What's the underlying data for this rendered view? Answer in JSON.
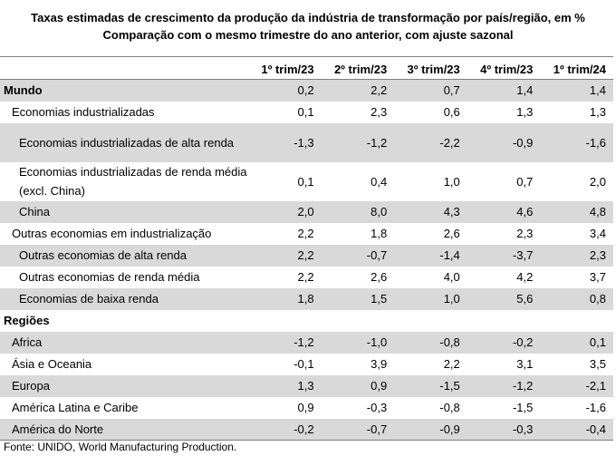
{
  "title": "Taxas estimadas de crescimento da produção da indústria de transformação por país/região, em %",
  "subtitle": "Comparação com o mesmo trimestre do ano anterior, com ajuste sazonal",
  "columns": [
    "1º trim/23",
    "2º trim/23",
    "3º trim/23",
    "4º trim/23",
    "1º trim/24"
  ],
  "rows": [
    {
      "label": "Mundo",
      "values": [
        "0,2",
        "2,2",
        "0,7",
        "1,4",
        "1,4"
      ]
    },
    {
      "label": "Economias industrializadas",
      "values": [
        "0,1",
        "2,3",
        "0,6",
        "1,3",
        "1,3"
      ]
    },
    {
      "label": "Economias industrializadas de alta renda",
      "values": [
        "-1,3",
        "-1,2",
        "-2,2",
        "-0,9",
        "-1,6"
      ]
    },
    {
      "label": "Economias industrializadas de renda média (excl. China)",
      "values": [
        "0,1",
        "0,4",
        "1,0",
        "0,7",
        "2,0"
      ]
    },
    {
      "label": "China",
      "values": [
        "2,0",
        "8,0",
        "4,3",
        "4,6",
        "4,8"
      ]
    },
    {
      "label": "Outras economias em industrialização",
      "values": [
        "2,2",
        "1,8",
        "2,6",
        "2,3",
        "3,4"
      ]
    },
    {
      "label": "Outras economias de alta renda",
      "values": [
        "2,2",
        "-0,7",
        "-1,4",
        "-3,7",
        "2,3"
      ]
    },
    {
      "label": "Outras economias de renda média",
      "values": [
        "2,2",
        "2,6",
        "4,0",
        "4,2",
        "3,7"
      ]
    },
    {
      "label": "Economias de baixa renda",
      "values": [
        "1,8",
        "1,5",
        "1,0",
        "5,6",
        "0,8"
      ]
    },
    {
      "label": "Regiões",
      "values": [
        "",
        "",
        "",
        "",
        ""
      ]
    },
    {
      "label": "Africa",
      "values": [
        "-1,2",
        "-1,0",
        "-0,8",
        "-0,2",
        "0,1"
      ]
    },
    {
      "label": "Ásia e Oceania",
      "values": [
        "-0,1",
        "3,9",
        "2,2",
        "3,1",
        "3,5"
      ]
    },
    {
      "label": "Europa",
      "values": [
        "1,3",
        "0,9",
        "-1,5",
        "-1,2",
        "-2,1"
      ]
    },
    {
      "label": "América Latina e Caribe",
      "values": [
        "0,9",
        "-0,3",
        "-0,8",
        "-1,5",
        "-1,6"
      ]
    },
    {
      "label": "América do Norte",
      "values": [
        "-0,2",
        "-0,7",
        "-0,9",
        "-0,3",
        "-0,4"
      ]
    }
  ],
  "source": "Fonte: UNIDO, World Manufacturing Production."
}
